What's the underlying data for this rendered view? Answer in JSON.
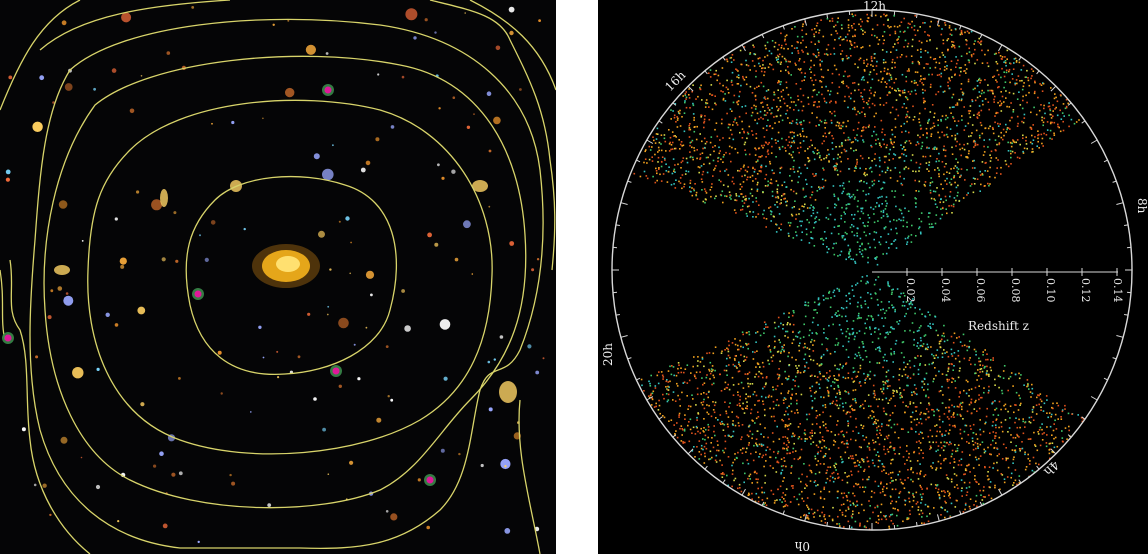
{
  "left_image": {
    "background": "#050506",
    "contour_color": "#d8d46a",
    "central_galaxy_color": "#f6b21c",
    "marked_source_color": "#e0189a"
  },
  "right_image": {
    "background": "#000000",
    "circle_color": "#d8d8d8",
    "galaxy_colors": [
      "#e0521c",
      "#f2a21e",
      "#d6d94a",
      "#3fc86a",
      "#34c4c0"
    ],
    "hour_labels": {
      "top": "12h",
      "upper_left": "16h",
      "right": "8h",
      "left": "20h",
      "bottom": "0h",
      "lower_right": "4h"
    },
    "redshift_ticks": [
      "0.02",
      "0.04",
      "0.06",
      "0.08",
      "0.10",
      "0.12",
      "0.14"
    ],
    "axis_label": "Redshift z"
  }
}
